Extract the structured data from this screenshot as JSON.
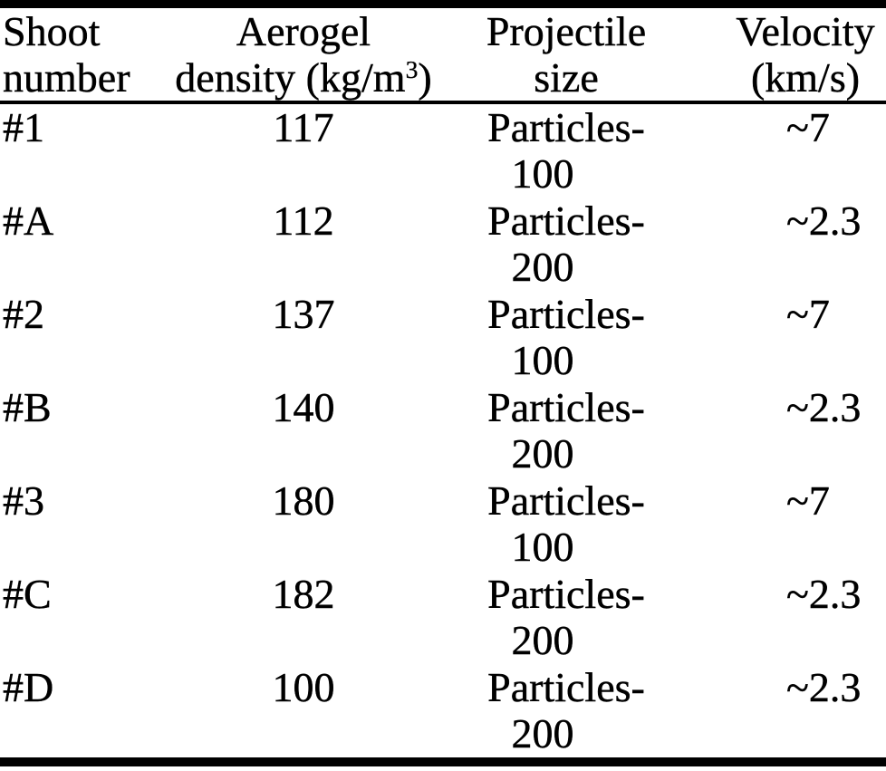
{
  "colors": {
    "text": "#000000",
    "background": "#ffffff",
    "rules": "#000000"
  },
  "table": {
    "header": {
      "col1": {
        "line1": "Shoot",
        "line2": "number"
      },
      "col2": {
        "line1": "Aerogel",
        "line2_prefix": "density (kg/m",
        "line2_sup": "3",
        "line2_suffix": ")"
      },
      "col3": {
        "line1": "Projectile",
        "line2": "size"
      },
      "col4": {
        "line1": "Velocity",
        "line2": "(km/s)"
      }
    },
    "rows": [
      {
        "shoot": "#1",
        "density": "117",
        "projectile_line1": "Particles-",
        "projectile_line2": "100",
        "velocity": "~7"
      },
      {
        "shoot": "#A",
        "density": "112",
        "projectile_line1": "Particles-",
        "projectile_line2": "200",
        "velocity": "~2.3"
      },
      {
        "shoot": "#2",
        "density": "137",
        "projectile_line1": "Particles-",
        "projectile_line2": "100",
        "velocity": "~7"
      },
      {
        "shoot": "#B",
        "density": "140",
        "projectile_line1": "Particles-",
        "projectile_line2": "200",
        "velocity": "~2.3"
      },
      {
        "shoot": "#3",
        "density": "180",
        "projectile_line1": "Particles-",
        "projectile_line2": "100",
        "velocity": "~7"
      },
      {
        "shoot": "#C",
        "density": "182",
        "projectile_line1": "Particles-",
        "projectile_line2": "200",
        "velocity": "~2.3"
      },
      {
        "shoot": "#D",
        "density": "100",
        "projectile_line1": "Particles-",
        "projectile_line2": "200",
        "velocity": "~2.3"
      }
    ]
  }
}
